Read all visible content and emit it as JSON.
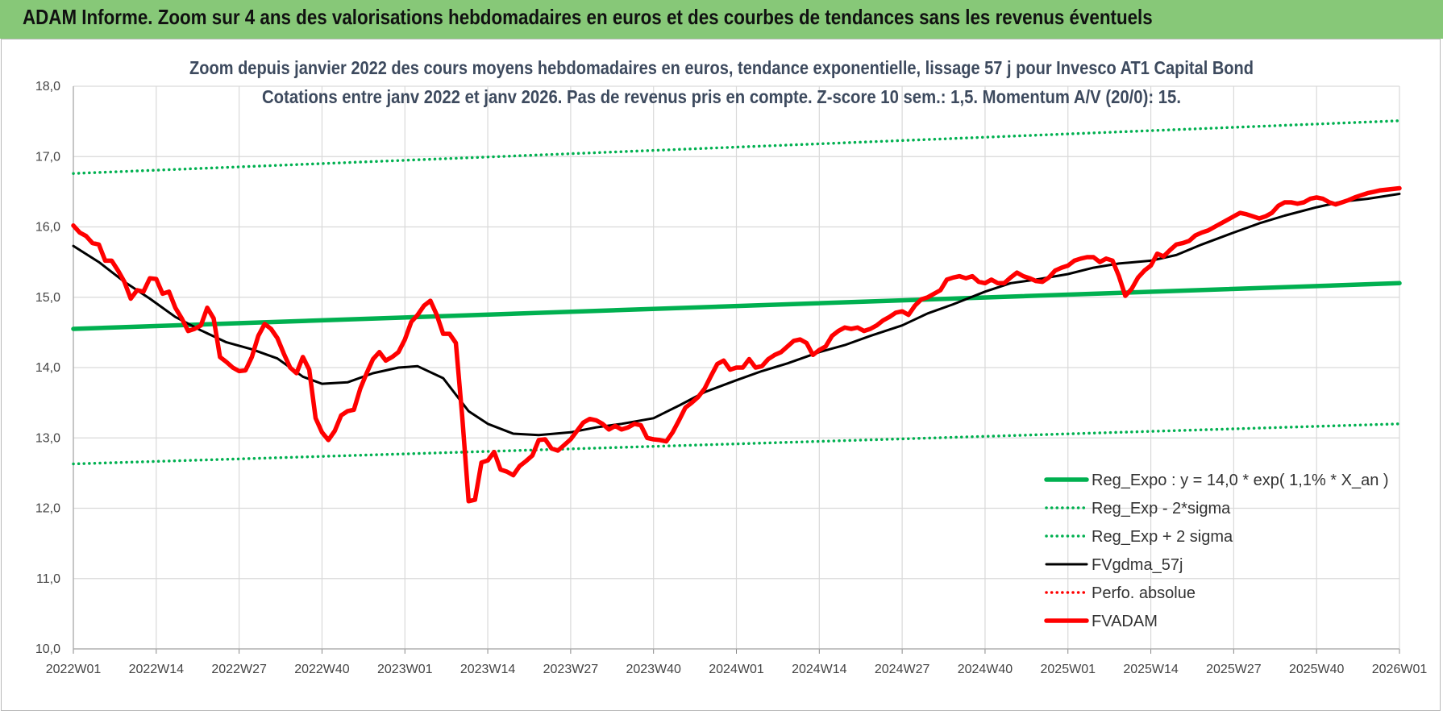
{
  "header": {
    "banner_title": "ADAM Informe. Zoom sur 4 ans des valorisations hebdomadaires en euros et des courbes de tendances sans les revenus éventuels"
  },
  "colors": {
    "banner_bg": "#87c878",
    "trend_green": "#00b050",
    "price_red": "#ff0000",
    "smooth_black": "#000000",
    "grid": "#d9d9d9"
  },
  "chart_data": {
    "type": "line",
    "title": "Zoom depuis janvier 2022 des cours moyens hebdomadaires en euros, tendance exponentielle, lissage 57 j pour Invesco AT1 Capital Bond",
    "subtitle": "Cotations entre janv 2022 et janv 2026. Pas de revenus pris en compte. Z-score 10 sem.: 1,5. Momentum A/V (20/0): 15.",
    "xlabel": "",
    "ylabel": "",
    "x_tick_labels": [
      "2022W01",
      "2022W14",
      "2022W27",
      "2022W40",
      "2023W01",
      "2023W14",
      "2023W27",
      "2023W40",
      "2024W01",
      "2024W14",
      "2024W27",
      "2024W40",
      "2025W01",
      "2025W14",
      "2025W27",
      "2025W40",
      "2026W01"
    ],
    "y_tick_labels": [
      "10,0",
      "11,0",
      "12,0",
      "13,0",
      "14,0",
      "15,0",
      "16,0",
      "17,0",
      "18,0"
    ],
    "ylim": [
      10,
      18
    ],
    "xlim": [
      "2022W01",
      "2026W01"
    ],
    "grid": true,
    "legend_position": "bottom-right",
    "series": [
      {
        "name": "Reg_Expo : y = 14,0 * exp( 1,1% *  X_an )",
        "style": "solid-thick",
        "color": "#00b050",
        "points": [
          [
            "2022W01",
            14.55
          ],
          [
            "2026W01",
            15.2
          ]
        ]
      },
      {
        "name": "Reg_Exp - 2*sigma",
        "style": "dotted",
        "color": "#00b050",
        "points": [
          [
            "2022W01",
            12.63
          ],
          [
            "2026W01",
            13.2
          ]
        ]
      },
      {
        "name": "Reg_Exp + 2 sigma",
        "style": "dotted",
        "color": "#00b050",
        "points": [
          [
            "2022W01",
            16.76
          ],
          [
            "2026W01",
            17.51
          ]
        ]
      },
      {
        "name": "FVgdma_57j",
        "style": "solid",
        "color": "#000000",
        "points": [
          [
            "2022W01",
            15.73
          ],
          [
            "2022W05",
            15.5
          ],
          [
            "2022W09",
            15.22
          ],
          [
            "2022W13",
            14.98
          ],
          [
            "2022W17",
            14.72
          ],
          [
            "2022W21",
            14.53
          ],
          [
            "2022W25",
            14.36
          ],
          [
            "2022W29",
            14.26
          ],
          [
            "2022W33",
            14.13
          ],
          [
            "2022W37",
            13.87
          ],
          [
            "2022W40",
            13.77
          ],
          [
            "2022W44",
            13.79
          ],
          [
            "2022W48",
            13.92
          ],
          [
            "2022W52",
            14.0
          ],
          [
            "2023W03",
            14.02
          ],
          [
            "2023W07",
            13.85
          ],
          [
            "2023W11",
            13.38
          ],
          [
            "2023W14",
            13.2
          ],
          [
            "2023W18",
            13.06
          ],
          [
            "2023W22",
            13.04
          ],
          [
            "2023W27",
            13.08
          ],
          [
            "2023W31",
            13.15
          ],
          [
            "2023W35",
            13.2
          ],
          [
            "2023W40",
            13.28
          ],
          [
            "2023W44",
            13.46
          ],
          [
            "2023W48",
            13.65
          ],
          [
            "2024W01",
            13.82
          ],
          [
            "2024W05",
            13.95
          ],
          [
            "2024W09",
            14.06
          ],
          [
            "2024W14",
            14.22
          ],
          [
            "2024W18",
            14.32
          ],
          [
            "2024W22",
            14.45
          ],
          [
            "2024W27",
            14.6
          ],
          [
            "2024W31",
            14.77
          ],
          [
            "2024W35",
            14.9
          ],
          [
            "2024W40",
            15.08
          ],
          [
            "2024W44",
            15.2
          ],
          [
            "2024W48",
            15.25
          ],
          [
            "2025W01",
            15.33
          ],
          [
            "2025W05",
            15.42
          ],
          [
            "2025W09",
            15.48
          ],
          [
            "2025W14",
            15.52
          ],
          [
            "2025W18",
            15.6
          ],
          [
            "2025W22",
            15.75
          ],
          [
            "2025W27",
            15.92
          ],
          [
            "2025W31",
            16.05
          ],
          [
            "2025W35",
            16.16
          ],
          [
            "2025W40",
            16.28
          ],
          [
            "2025W44",
            16.36
          ],
          [
            "2025W48",
            16.4
          ],
          [
            "2026W01",
            16.47
          ]
        ]
      },
      {
        "name": "Perfo. absolue",
        "style": "dotted",
        "color": "#ff0000",
        "points": []
      },
      {
        "name": "FVADAM",
        "style": "solid-thick",
        "color": "#ff0000",
        "points": [
          [
            "2022W01",
            16.02
          ],
          [
            "2022W02",
            15.92
          ],
          [
            "2022W03",
            15.87
          ],
          [
            "2022W04",
            15.77
          ],
          [
            "2022W05",
            15.75
          ],
          [
            "2022W06",
            15.52
          ],
          [
            "2022W07",
            15.52
          ],
          [
            "2022W08",
            15.38
          ],
          [
            "2022W09",
            15.22
          ],
          [
            "2022W10",
            14.98
          ],
          [
            "2022W11",
            15.1
          ],
          [
            "2022W12",
            15.08
          ],
          [
            "2022W13",
            15.27
          ],
          [
            "2022W14",
            15.26
          ],
          [
            "2022W15",
            15.05
          ],
          [
            "2022W16",
            15.08
          ],
          [
            "2022W17",
            14.85
          ],
          [
            "2022W18",
            14.7
          ],
          [
            "2022W19",
            14.52
          ],
          [
            "2022W20",
            14.55
          ],
          [
            "2022W21",
            14.6
          ],
          [
            "2022W22",
            14.85
          ],
          [
            "2022W23",
            14.7
          ],
          [
            "2022W24",
            14.15
          ],
          [
            "2022W25",
            14.08
          ],
          [
            "2022W26",
            14.0
          ],
          [
            "2022W27",
            13.95
          ],
          [
            "2022W28",
            13.96
          ],
          [
            "2022W29",
            14.15
          ],
          [
            "2022W30",
            14.45
          ],
          [
            "2022W31",
            14.62
          ],
          [
            "2022W32",
            14.55
          ],
          [
            "2022W33",
            14.42
          ],
          [
            "2022W34",
            14.2
          ],
          [
            "2022W35",
            14.0
          ],
          [
            "2022W36",
            13.92
          ],
          [
            "2022W37",
            14.15
          ],
          [
            "2022W38",
            13.97
          ],
          [
            "2022W39",
            13.28
          ],
          [
            "2022W40",
            13.08
          ],
          [
            "2022W41",
            12.97
          ],
          [
            "2022W42",
            13.1
          ],
          [
            "2022W43",
            13.32
          ],
          [
            "2022W44",
            13.38
          ],
          [
            "2022W45",
            13.4
          ],
          [
            "2022W46",
            13.7
          ],
          [
            "2022W47",
            13.92
          ],
          [
            "2022W48",
            14.12
          ],
          [
            "2022W49",
            14.22
          ],
          [
            "2022W50",
            14.1
          ],
          [
            "2022W51",
            14.15
          ],
          [
            "2022W52",
            14.22
          ],
          [
            "2023W01",
            14.4
          ],
          [
            "2023W02",
            14.65
          ],
          [
            "2023W03",
            14.75
          ],
          [
            "2023W04",
            14.88
          ],
          [
            "2023W05",
            14.95
          ],
          [
            "2023W06",
            14.75
          ],
          [
            "2023W07",
            14.48
          ],
          [
            "2023W08",
            14.48
          ],
          [
            "2023W09",
            14.35
          ],
          [
            "2023W10",
            13.3
          ],
          [
            "2023W11",
            12.1
          ],
          [
            "2023W12",
            12.12
          ],
          [
            "2023W13",
            12.65
          ],
          [
            "2023W14",
            12.68
          ],
          [
            "2023W15",
            12.8
          ],
          [
            "2023W16",
            12.55
          ],
          [
            "2023W17",
            12.52
          ],
          [
            "2023W18",
            12.47
          ],
          [
            "2023W19",
            12.6
          ],
          [
            "2023W20",
            12.67
          ],
          [
            "2023W21",
            12.75
          ],
          [
            "2023W22",
            12.97
          ],
          [
            "2023W23",
            12.98
          ],
          [
            "2023W24",
            12.85
          ],
          [
            "2023W25",
            12.82
          ],
          [
            "2023W26",
            12.9
          ],
          [
            "2023W27",
            12.98
          ],
          [
            "2023W28",
            13.1
          ],
          [
            "2023W29",
            13.22
          ],
          [
            "2023W30",
            13.27
          ],
          [
            "2023W31",
            13.25
          ],
          [
            "2023W32",
            13.2
          ],
          [
            "2023W33",
            13.12
          ],
          [
            "2023W34",
            13.17
          ],
          [
            "2023W35",
            13.12
          ],
          [
            "2023W36",
            13.15
          ],
          [
            "2023W37",
            13.2
          ],
          [
            "2023W38",
            13.18
          ],
          [
            "2023W39",
            13.0
          ],
          [
            "2023W40",
            12.98
          ],
          [
            "2023W41",
            12.97
          ],
          [
            "2023W42",
            12.95
          ],
          [
            "2023W43",
            13.08
          ],
          [
            "2023W44",
            13.25
          ],
          [
            "2023W45",
            13.43
          ],
          [
            "2023W46",
            13.5
          ],
          [
            "2023W47",
            13.58
          ],
          [
            "2023W48",
            13.7
          ],
          [
            "2023W49",
            13.88
          ],
          [
            "2023W50",
            14.05
          ],
          [
            "2023W51",
            14.1
          ],
          [
            "2023W52",
            13.97
          ],
          [
            "2024W01",
            14.0
          ],
          [
            "2024W02",
            14.0
          ],
          [
            "2024W03",
            14.12
          ],
          [
            "2024W04",
            14.0
          ],
          [
            "2024W05",
            14.02
          ],
          [
            "2024W06",
            14.12
          ],
          [
            "2024W07",
            14.18
          ],
          [
            "2024W08",
            14.22
          ],
          [
            "2024W09",
            14.3
          ],
          [
            "2024W10",
            14.38
          ],
          [
            "2024W11",
            14.4
          ],
          [
            "2024W12",
            14.35
          ],
          [
            "2024W13",
            14.18
          ],
          [
            "2024W14",
            14.25
          ],
          [
            "2024W15",
            14.3
          ],
          [
            "2024W16",
            14.45
          ],
          [
            "2024W17",
            14.52
          ],
          [
            "2024W18",
            14.57
          ],
          [
            "2024W19",
            14.55
          ],
          [
            "2024W20",
            14.57
          ],
          [
            "2024W21",
            14.52
          ],
          [
            "2024W22",
            14.55
          ],
          [
            "2024W23",
            14.6
          ],
          [
            "2024W24",
            14.67
          ],
          [
            "2024W25",
            14.72
          ],
          [
            "2024W26",
            14.78
          ],
          [
            "2024W27",
            14.8
          ],
          [
            "2024W28",
            14.75
          ],
          [
            "2024W29",
            14.88
          ],
          [
            "2024W30",
            14.97
          ],
          [
            "2024W31",
            15.0
          ],
          [
            "2024W32",
            15.05
          ],
          [
            "2024W33",
            15.1
          ],
          [
            "2024W34",
            15.25
          ],
          [
            "2024W35",
            15.28
          ],
          [
            "2024W36",
            15.3
          ],
          [
            "2024W37",
            15.27
          ],
          [
            "2024W38",
            15.3
          ],
          [
            "2024W39",
            15.22
          ],
          [
            "2024W40",
            15.2
          ],
          [
            "2024W41",
            15.25
          ],
          [
            "2024W42",
            15.2
          ],
          [
            "2024W43",
            15.2
          ],
          [
            "2024W44",
            15.28
          ],
          [
            "2024W45",
            15.35
          ],
          [
            "2024W46",
            15.3
          ],
          [
            "2024W47",
            15.27
          ],
          [
            "2024W48",
            15.23
          ],
          [
            "2024W49",
            15.22
          ],
          [
            "2024W50",
            15.28
          ],
          [
            "2024W51",
            15.38
          ],
          [
            "2024W52",
            15.42
          ],
          [
            "2025W01",
            15.45
          ],
          [
            "2025W02",
            15.52
          ],
          [
            "2025W03",
            15.55
          ],
          [
            "2025W04",
            15.57
          ],
          [
            "2025W05",
            15.57
          ],
          [
            "2025W06",
            15.5
          ],
          [
            "2025W07",
            15.55
          ],
          [
            "2025W08",
            15.52
          ],
          [
            "2025W09",
            15.3
          ],
          [
            "2025W10",
            15.02
          ],
          [
            "2025W11",
            15.12
          ],
          [
            "2025W12",
            15.28
          ],
          [
            "2025W13",
            15.38
          ],
          [
            "2025W14",
            15.45
          ],
          [
            "2025W15",
            15.62
          ],
          [
            "2025W16",
            15.58
          ],
          [
            "2025W17",
            15.67
          ],
          [
            "2025W18",
            15.75
          ],
          [
            "2025W19",
            15.77
          ],
          [
            "2025W20",
            15.8
          ],
          [
            "2025W21",
            15.88
          ],
          [
            "2025W22",
            15.92
          ],
          [
            "2025W23",
            15.95
          ],
          [
            "2025W24",
            16.0
          ],
          [
            "2025W25",
            16.05
          ],
          [
            "2025W26",
            16.1
          ],
          [
            "2025W27",
            16.15
          ],
          [
            "2025W28",
            16.2
          ],
          [
            "2025W29",
            16.18
          ],
          [
            "2025W30",
            16.15
          ],
          [
            "2025W31",
            16.12
          ],
          [
            "2025W32",
            16.15
          ],
          [
            "2025W33",
            16.2
          ],
          [
            "2025W34",
            16.3
          ],
          [
            "2025W35",
            16.35
          ],
          [
            "2025W36",
            16.35
          ],
          [
            "2025W37",
            16.33
          ],
          [
            "2025W38",
            16.35
          ],
          [
            "2025W39",
            16.4
          ],
          [
            "2025W40",
            16.42
          ],
          [
            "2025W41",
            16.4
          ],
          [
            "2025W42",
            16.35
          ],
          [
            "2025W43",
            16.32
          ],
          [
            "2025W44",
            16.35
          ],
          [
            "2025W45",
            16.38
          ],
          [
            "2025W46",
            16.42
          ],
          [
            "2025W47",
            16.45
          ],
          [
            "2025W48",
            16.48
          ],
          [
            "2025W49",
            16.5
          ],
          [
            "2025W50",
            16.52
          ],
          [
            "2026W01",
            16.55
          ]
        ]
      }
    ]
  }
}
